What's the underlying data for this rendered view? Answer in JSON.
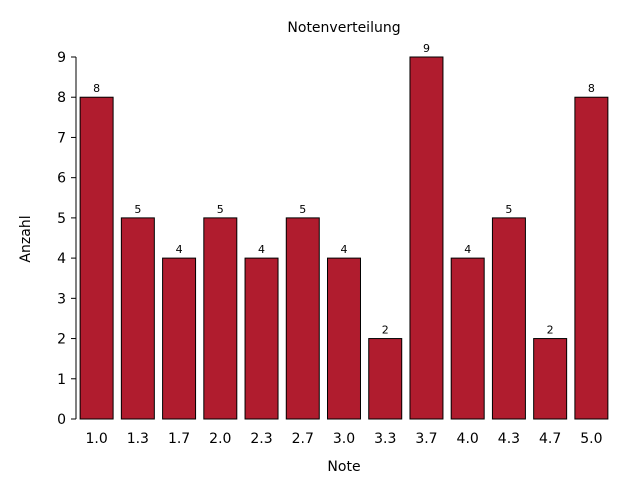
{
  "chart_data": {
    "type": "bar",
    "title": "Notenverteilung",
    "xlabel": "Note",
    "ylabel": "Anzahl",
    "categories": [
      "1.0",
      "1.3",
      "1.7",
      "2.0",
      "2.3",
      "2.7",
      "3.0",
      "3.3",
      "3.7",
      "4.0",
      "4.3",
      "4.7",
      "5.0"
    ],
    "values": [
      8,
      5,
      4,
      5,
      4,
      5,
      4,
      2,
      9,
      4,
      5,
      2,
      8
    ],
    "ylim": [
      0,
      9
    ],
    "yticks": [
      "0",
      "1",
      "2",
      "3",
      "4",
      "5",
      "6",
      "7",
      "8",
      "9"
    ],
    "bar_color": "#b01c2e",
    "grid": false,
    "data_labels": true
  }
}
